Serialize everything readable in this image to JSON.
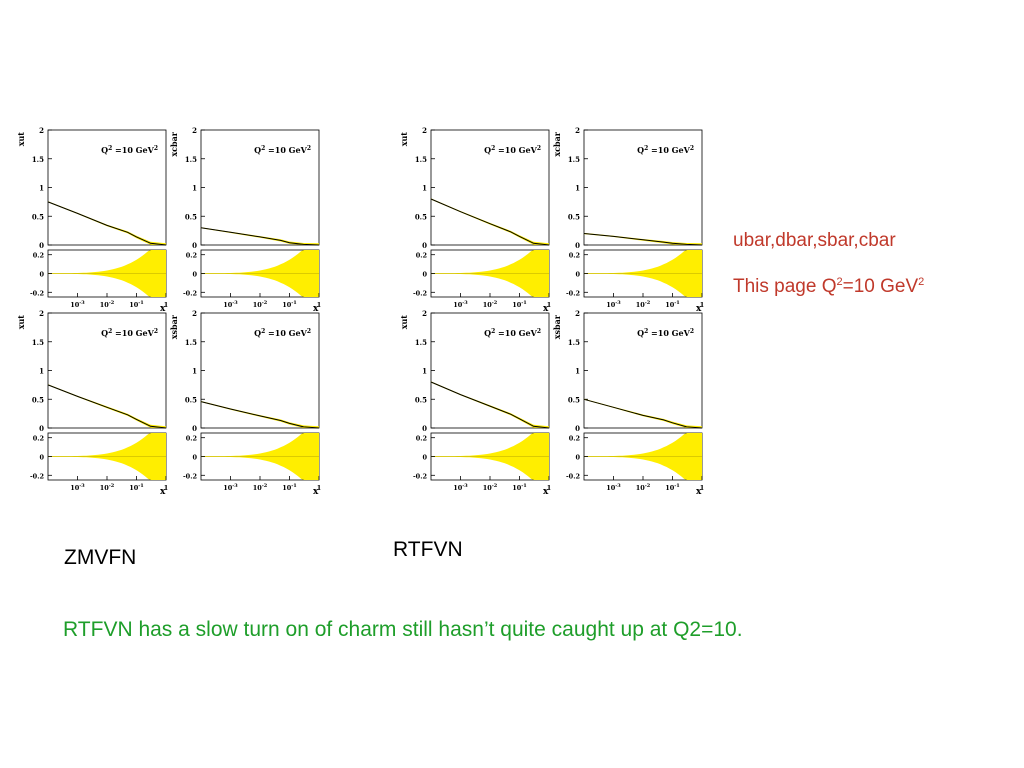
{
  "notes": {
    "flavors": "ubar,dbar,sbar,cbar",
    "page_prefix": "This page Q",
    "page_mid": "=10 GeV",
    "sup": "2"
  },
  "labels": {
    "zmvfn": "ZMVFN",
    "rtfvn": "RTFVN",
    "comment": "RTFVN has a slow turn on of charm still hasn’t quite caught up at Q2=10."
  },
  "axis_text": {
    "q2_lead": "Q",
    "q2_sup": "2",
    "q2_tail": " =10 GeV",
    "x_label": "x",
    "top_ticks": [
      "2",
      "1.5",
      "1",
      "0.5",
      "0"
    ],
    "bot_ticks": [
      "0.2",
      "0",
      "-0.2"
    ],
    "x_ticks": [
      "10",
      "10",
      "10",
      "1"
    ],
    "x_exps": [
      "-3",
      "-2",
      "-1",
      ""
    ]
  },
  "colors": {
    "band": "#ffee00",
    "curve": "#000000",
    "side_note": "#c0392b",
    "comment": "#1e9e2a"
  },
  "chart_data": [
    {
      "type": "line",
      "group": "ZMVFN",
      "ylabel": "xut",
      "x": [
        0.0001,
        0.001,
        0.01,
        0.05,
        0.1,
        0.3,
        1
      ],
      "y": [
        0.75,
        0.55,
        0.34,
        0.22,
        0.14,
        0.03,
        0
      ],
      "ylim": [
        0,
        2
      ],
      "band_max": 0.45
    },
    {
      "type": "line",
      "group": "ZMVFN",
      "ylabel": "xcbar",
      "x": [
        0.0001,
        0.001,
        0.01,
        0.05,
        0.1,
        0.3,
        1
      ],
      "y": [
        0.3,
        0.22,
        0.14,
        0.08,
        0.04,
        0.01,
        0
      ],
      "ylim": [
        0,
        2
      ],
      "band_max": 0.45
    },
    {
      "type": "line",
      "group": "ZMVFN",
      "ylabel": "xut",
      "x": [
        0.0001,
        0.001,
        0.01,
        0.05,
        0.1,
        0.3,
        1
      ],
      "y": [
        0.75,
        0.55,
        0.36,
        0.23,
        0.15,
        0.03,
        0
      ],
      "ylim": [
        0,
        2
      ],
      "band_max": 0.45
    },
    {
      "type": "line",
      "group": "ZMVFN",
      "ylabel": "xsbar",
      "x": [
        0.0001,
        0.001,
        0.01,
        0.05,
        0.1,
        0.3,
        1
      ],
      "y": [
        0.46,
        0.33,
        0.21,
        0.13,
        0.08,
        0.02,
        0
      ],
      "ylim": [
        0,
        2
      ],
      "band_max": 0.45
    },
    {
      "type": "line",
      "group": "RTFVN",
      "ylabel": "xut",
      "x": [
        0.0001,
        0.001,
        0.01,
        0.05,
        0.1,
        0.3,
        1
      ],
      "y": [
        0.8,
        0.58,
        0.37,
        0.23,
        0.15,
        0.03,
        0
      ],
      "ylim": [
        0,
        2
      ],
      "band_max": 0.45
    },
    {
      "type": "line",
      "group": "RTFVN",
      "ylabel": "xcbar",
      "x": [
        0.0001,
        0.001,
        0.01,
        0.05,
        0.1,
        0.3,
        1
      ],
      "y": [
        0.2,
        0.15,
        0.09,
        0.05,
        0.03,
        0.01,
        0
      ],
      "ylim": [
        0,
        2
      ],
      "band_max": 0.45
    },
    {
      "type": "line",
      "group": "RTFVN",
      "ylabel": "xut",
      "x": [
        0.0001,
        0.001,
        0.01,
        0.05,
        0.1,
        0.3,
        1
      ],
      "y": [
        0.8,
        0.58,
        0.38,
        0.24,
        0.16,
        0.03,
        0
      ],
      "ylim": [
        0,
        2
      ],
      "band_max": 0.45
    },
    {
      "type": "line",
      "group": "RTFVN",
      "ylabel": "xsbar",
      "x": [
        0.0001,
        0.001,
        0.01,
        0.05,
        0.1,
        0.3,
        1
      ],
      "y": [
        0.5,
        0.36,
        0.22,
        0.14,
        0.09,
        0.02,
        0
      ],
      "ylim": [
        0,
        2
      ],
      "band_max": 0.45
    }
  ]
}
